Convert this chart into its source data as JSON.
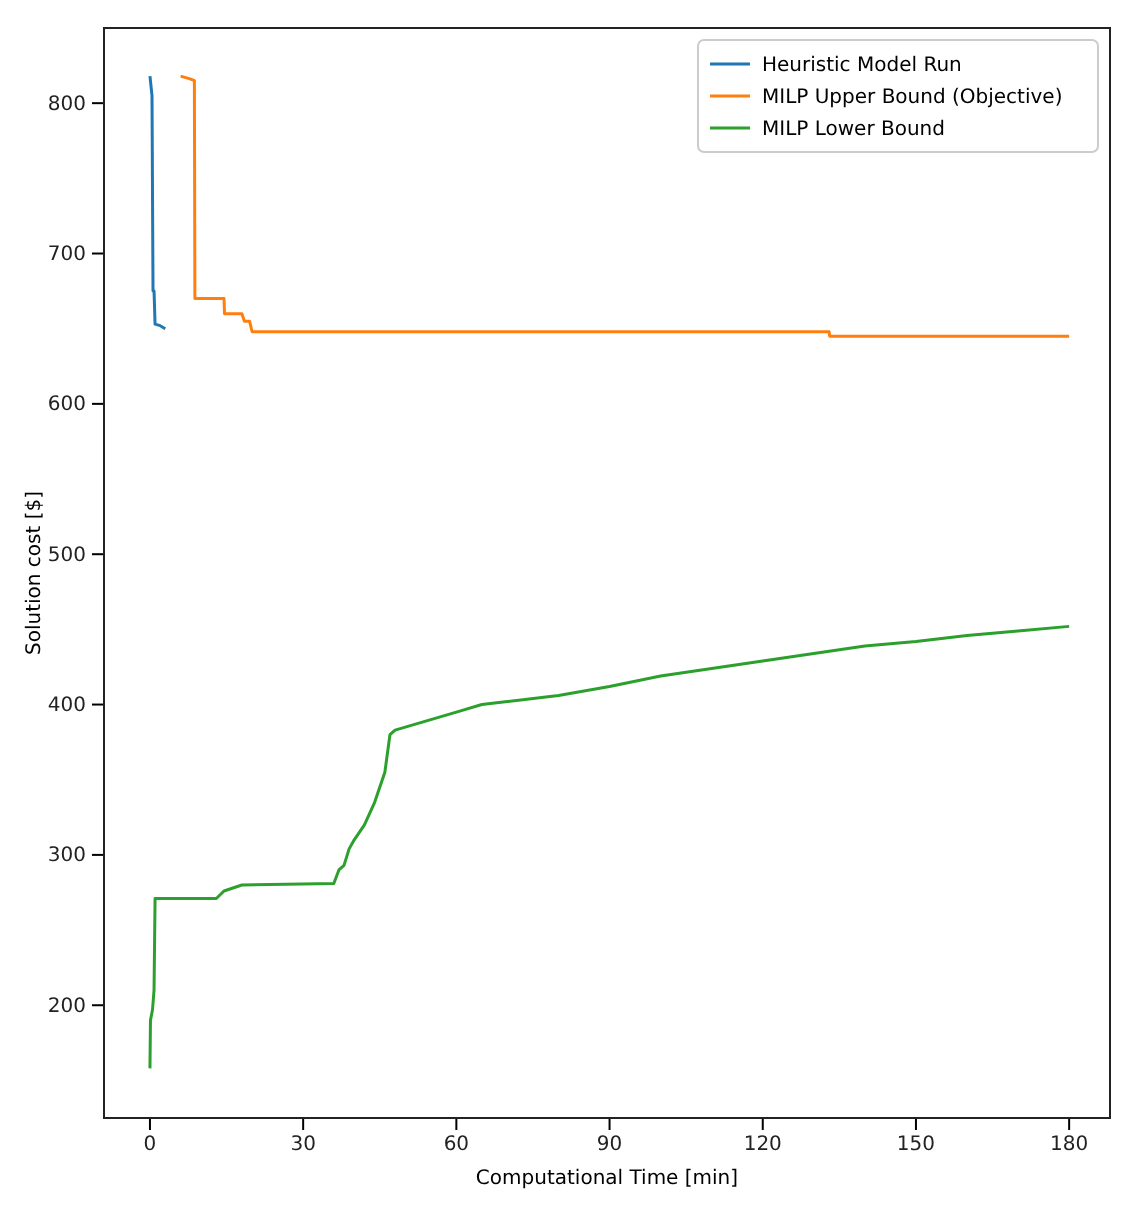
{
  "chart_data": {
    "type": "line",
    "xlabel": "Computational Time [min]",
    "ylabel": "Solution cost [$]",
    "xlim": [
      -9,
      188
    ],
    "ylim": [
      125,
      850
    ],
    "xticks": [
      0,
      30,
      60,
      90,
      120,
      150,
      180
    ],
    "yticks": [
      200,
      300,
      400,
      500,
      600,
      700,
      800
    ],
    "grid": false,
    "legend": "top right",
    "series": [
      {
        "name": "Heuristic Model Run",
        "color": "#1f77b4",
        "x": [
          0,
          0.4,
          0.6,
          0.8,
          1,
          2,
          3
        ],
        "values": [
          818,
          805,
          675,
          675,
          653,
          652,
          650
        ]
      },
      {
        "name": "MILP Upper Bound (Objective)",
        "color": "#ff7f0e",
        "x": [
          6,
          8,
          8.7,
          8.8,
          14.5,
          14.6,
          18,
          18.5,
          19.5,
          20,
          133,
          133.1,
          180
        ],
        "values": [
          818,
          816,
          815,
          670,
          670,
          660,
          660,
          655,
          655,
          648,
          648,
          645,
          645
        ]
      },
      {
        "name": "MILP Lower Bound",
        "color": "#2ca02c",
        "x": [
          0,
          0.1,
          0.5,
          0.8,
          1,
          13,
          14.5,
          18,
          36,
          37,
          38,
          39,
          40,
          42,
          44,
          46,
          47,
          48,
          50,
          55,
          60,
          65,
          70,
          80,
          90,
          100,
          110,
          120,
          130,
          140,
          150,
          160,
          170,
          180
        ],
        "values": [
          158,
          190,
          197,
          210,
          271,
          271,
          276,
          280,
          281,
          290,
          293,
          304,
          310,
          320,
          335,
          355,
          380,
          383,
          385,
          390,
          395,
          400,
          402,
          406,
          412,
          419,
          424,
          429,
          434,
          439,
          442,
          446,
          449,
          452
        ]
      }
    ]
  }
}
